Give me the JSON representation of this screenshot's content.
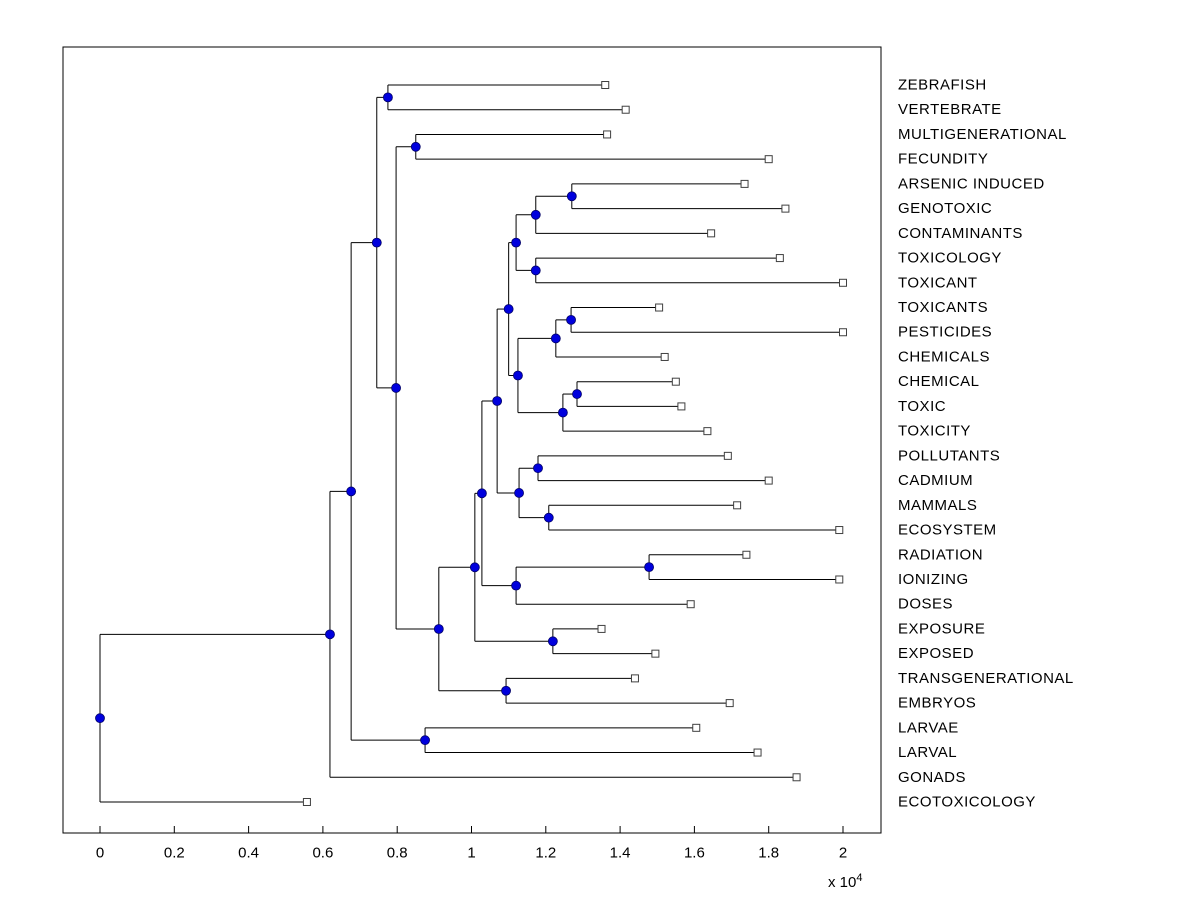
{
  "chart_data": {
    "type": "dendrogram",
    "orientation": "horizontal",
    "title": "",
    "xlabel": "",
    "ylabel": "",
    "grid": false,
    "legend": "none",
    "x_axis": {
      "tick_values": [
        0,
        2000,
        4000,
        6000,
        8000,
        10000,
        12000,
        14000,
        16000,
        18000,
        20000
      ],
      "tick_labels": [
        "0",
        "0.2",
        "0.4",
        "0.6",
        "0.8",
        "1",
        "1.2",
        "1.4",
        "1.6",
        "1.8",
        "2"
      ],
      "exponent_base": "x 10",
      "exponent_power": "4",
      "xlim": [
        -1000,
        21020
      ]
    },
    "colors": {
      "line": "#000000",
      "node_marker_fill": "#0000dd",
      "node_marker_edge": "#000066",
      "leaf_marker_fill": "#ffffff",
      "leaf_marker_edge": "#404040",
      "axis_box": "#000000"
    },
    "leaves": [
      {
        "label": "ZEBRAFISH",
        "x": 13600
      },
      {
        "label": "VERTEBRATE",
        "x": 14150
      },
      {
        "label": "MULTIGENERATIONAL",
        "x": 13650
      },
      {
        "label": "FECUNDITY",
        "x": 18000
      },
      {
        "label": "ARSENIC INDUCED",
        "x": 17350
      },
      {
        "label": "GENOTOXIC",
        "x": 18450
      },
      {
        "label": "CONTAMINANTS",
        "x": 16450
      },
      {
        "label": "TOXICOLOGY",
        "x": 18300
      },
      {
        "label": "TOXICANT",
        "x": 20000
      },
      {
        "label": "TOXICANTS",
        "x": 15050
      },
      {
        "label": "PESTICIDES",
        "x": 20000
      },
      {
        "label": "CHEMICALS",
        "x": 15200
      },
      {
        "label": "CHEMICAL",
        "x": 15500
      },
      {
        "label": "TOXIC",
        "x": 15650
      },
      {
        "label": "TOXICITY",
        "x": 16350
      },
      {
        "label": "POLLUTANTS",
        "x": 16900
      },
      {
        "label": "CADMIUM",
        "x": 18000
      },
      {
        "label": "MAMMALS",
        "x": 17150
      },
      {
        "label": "ECOSYSTEM",
        "x": 19900
      },
      {
        "label": "RADIATION",
        "x": 17400
      },
      {
        "label": "IONIZING",
        "x": 19900
      },
      {
        "label": "DOSES",
        "x": 15900
      },
      {
        "label": "EXPOSURE",
        "x": 13500
      },
      {
        "label": "EXPOSED",
        "x": 14950
      },
      {
        "label": "TRANSGENERATIONAL",
        "x": 14400
      },
      {
        "label": "EMBRYOS",
        "x": 16950
      },
      {
        "label": "LARVAE",
        "x": 16050
      },
      {
        "label": "LARVAL",
        "x": 17700
      },
      {
        "label": "GONADS",
        "x": 18750
      },
      {
        "label": "ECOTOXICOLOGY",
        "x": 5570
      }
    ],
    "links": [
      {
        "id": "N1",
        "a": "L0",
        "b": "L1",
        "x": 7750
      },
      {
        "id": "N2",
        "a": "L2",
        "b": "L3",
        "x": 8500
      },
      {
        "id": "N3",
        "a": "L4",
        "b": "L5",
        "x": 12700
      },
      {
        "id": "N4",
        "a": "N3",
        "b": "L6",
        "x": 11730
      },
      {
        "id": "N5",
        "a": "L7",
        "b": "L8",
        "x": 11730
      },
      {
        "id": "N6",
        "a": "N4",
        "b": "N5",
        "x": 11200
      },
      {
        "id": "N7",
        "a": "L9",
        "b": "L10",
        "x": 12680
      },
      {
        "id": "N8",
        "a": "N7",
        "b": "L11",
        "x": 12270
      },
      {
        "id": "N9",
        "a": "L12",
        "b": "L13",
        "x": 12840
      },
      {
        "id": "N10",
        "a": "N9",
        "b": "L14",
        "x": 12460
      },
      {
        "id": "N11",
        "a": "N8",
        "b": "N10",
        "x": 11250
      },
      {
        "id": "N12",
        "a": "N6",
        "b": "N11",
        "x": 11000
      },
      {
        "id": "N13",
        "a": "L15",
        "b": "L16",
        "x": 11790
      },
      {
        "id": "N14",
        "a": "L17",
        "b": "L18",
        "x": 12080
      },
      {
        "id": "N15",
        "a": "N13",
        "b": "N14",
        "x": 11280
      },
      {
        "id": "N16",
        "a": "N12",
        "b": "N15",
        "x": 10690
      },
      {
        "id": "N17",
        "a": "L19",
        "b": "L20",
        "x": 14780
      },
      {
        "id": "N18",
        "a": "N17",
        "b": "L21",
        "x": 11200
      },
      {
        "id": "N19",
        "a": "N16",
        "b": "N18",
        "x": 10280
      },
      {
        "id": "N20",
        "a": "L22",
        "b": "L23",
        "x": 12190
      },
      {
        "id": "N21",
        "a": "N19",
        "b": "N20",
        "x": 10090
      },
      {
        "id": "N22",
        "a": "L24",
        "b": "L25",
        "x": 10930
      },
      {
        "id": "N23",
        "a": "N21",
        "b": "N22",
        "x": 9120
      },
      {
        "id": "N24",
        "a": "N2",
        "b": "N23",
        "x": 7970
      },
      {
        "id": "N25",
        "a": "N1",
        "b": "N24",
        "x": 7450
      },
      {
        "id": "N26",
        "a": "L26",
        "b": "L27",
        "x": 8750
      },
      {
        "id": "N27",
        "a": "N25",
        "b": "N26",
        "x": 6760
      },
      {
        "id": "N28",
        "a": "N27",
        "b": "L28",
        "x": 6190
      },
      {
        "id": "N29",
        "a": "N28",
        "b": "L29",
        "x": 0
      }
    ]
  }
}
